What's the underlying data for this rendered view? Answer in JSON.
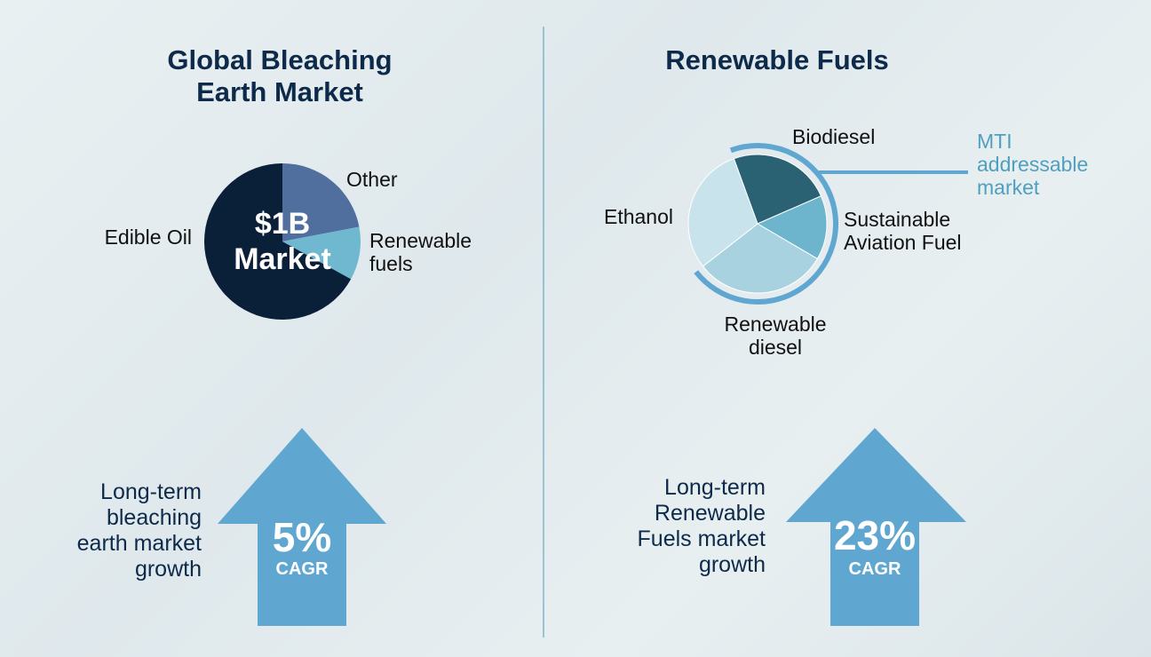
{
  "chart_data": [
    {
      "type": "pie",
      "title": "Global Bleaching Earth Market",
      "categories": [
        "Edible Oil",
        "Other",
        "Renewable fuels"
      ],
      "values": [
        67,
        22,
        11
      ],
      "colors": [
        "#0a1f38",
        "#506f9e",
        "#6fb8d0"
      ],
      "center_label": "$1B Market",
      "growth": "5%",
      "growth_unit": "CAGR",
      "growth_text": [
        "Long-term",
        "bleaching",
        "earth market",
        "growth"
      ]
    },
    {
      "type": "pie",
      "title": "Renewable Fuels",
      "categories": [
        "Biodiesel",
        "Sustainable Aviation Fuel",
        "Renewable diesel",
        "Ethanol"
      ],
      "values": [
        24,
        15,
        31,
        30
      ],
      "colors": [
        "#2b6273",
        "#6cb5cc",
        "#a8d2df",
        "#c8e3ec"
      ],
      "annotation": "MTI addressable market",
      "growth": "23%",
      "growth_unit": "CAGR",
      "growth_text": [
        "Long-term",
        "Renewable",
        "Fuels market",
        "growth"
      ]
    }
  ]
}
